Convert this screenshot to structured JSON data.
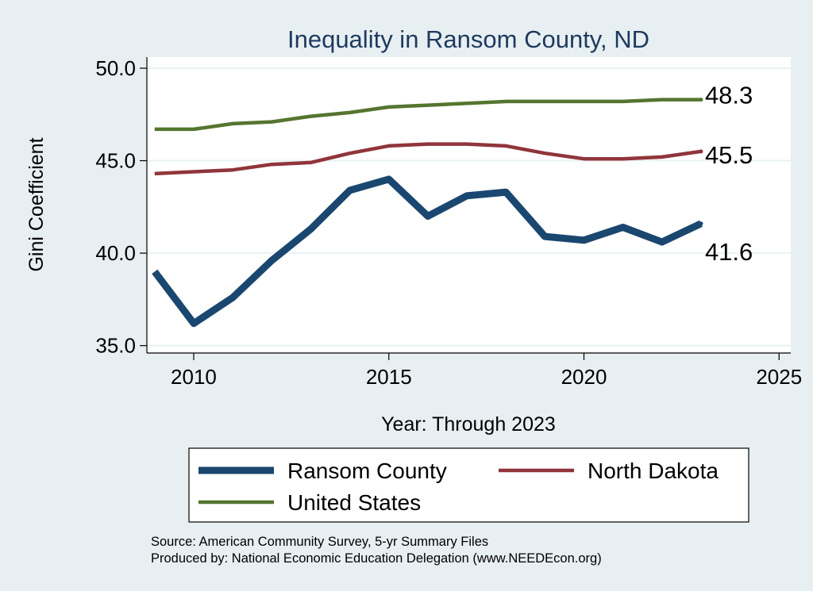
{
  "chart_data": {
    "type": "line",
    "title": "Inequality in Ransom County, ND",
    "xlabel": "Year: Through 2023",
    "ylabel": "Gini Coefficient",
    "xlim": [
      2008.8,
      2025.3
    ],
    "ylim": [
      34.6,
      50.6
    ],
    "xticks": [
      2010,
      2015,
      2020,
      2025
    ],
    "yticks": [
      35.0,
      40.0,
      45.0,
      50.0
    ],
    "grid": "horizontal",
    "x": [
      2009,
      2010,
      2011,
      2012,
      2013,
      2014,
      2015,
      2016,
      2017,
      2018,
      2019,
      2020,
      2021,
      2022,
      2023
    ],
    "series": [
      {
        "name": "Ransom County",
        "color": "#1a476f",
        "values": [
          39.0,
          36.2,
          37.6,
          39.6,
          41.3,
          43.4,
          44.0,
          42.0,
          43.1,
          43.3,
          40.9,
          40.7,
          41.4,
          40.6,
          41.6
        ],
        "end_label": "41.6"
      },
      {
        "name": "North Dakota",
        "color": "#90353b",
        "values": [
          44.3,
          44.4,
          44.5,
          44.8,
          44.9,
          45.4,
          45.8,
          45.9,
          45.9,
          45.8,
          45.4,
          45.1,
          45.1,
          45.2,
          45.5
        ],
        "end_label": "45.5"
      },
      {
        "name": "United States",
        "color": "#55752f",
        "values": [
          46.7,
          46.7,
          47.0,
          47.1,
          47.4,
          47.6,
          47.9,
          48.0,
          48.1,
          48.2,
          48.2,
          48.2,
          48.2,
          48.3,
          48.3
        ],
        "end_label": "48.3"
      }
    ],
    "legend": {
      "placement": "bottom",
      "entries": [
        "Ransom County",
        "North Dakota",
        "United States"
      ]
    },
    "notes": [
      "Source: American Community Survey, 5-yr Summary Files",
      "Produced by: National Economic Education Delegation (www.NEEDEcon.org)"
    ]
  }
}
